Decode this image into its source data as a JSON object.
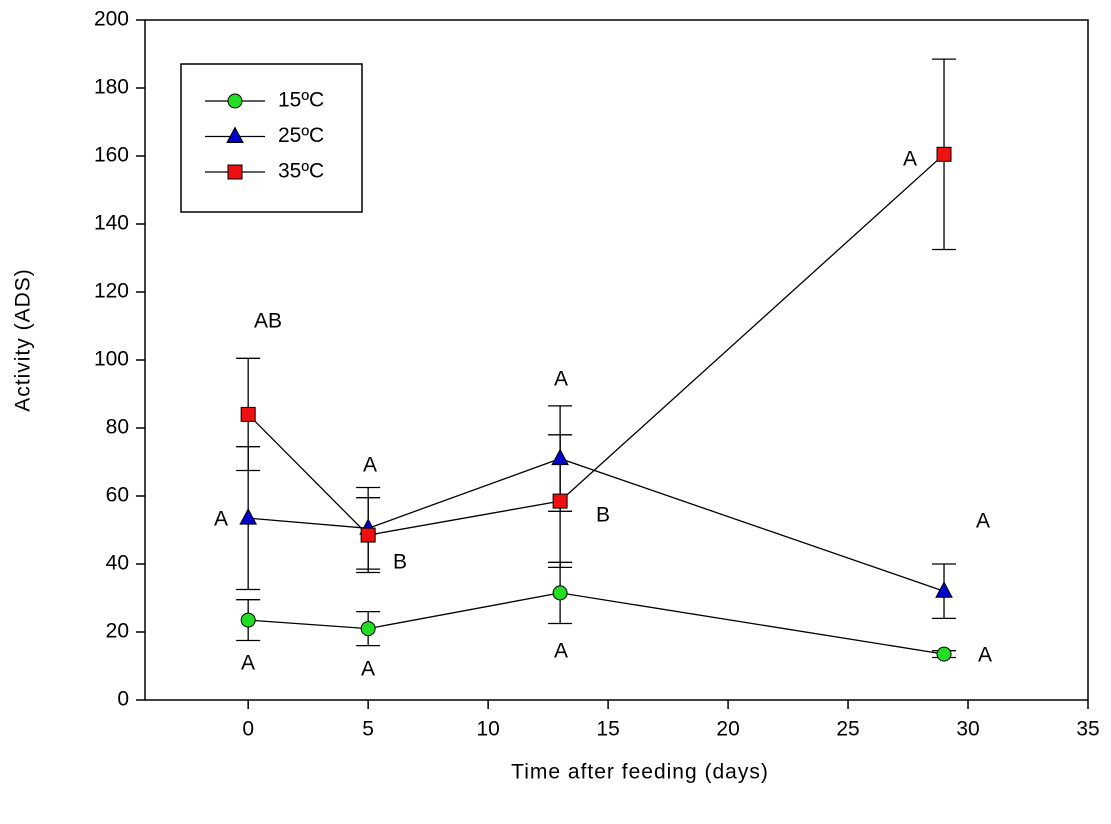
{
  "chart_data": {
    "type": "line",
    "x_label": "Time after feeding (days)",
    "y_label": "Activity (ADS)",
    "x": [
      0,
      5,
      13,
      29
    ],
    "series": [
      {
        "name": "15ºC",
        "color": "#22dd22",
        "marker": "circle",
        "values": [
          23.5,
          21,
          31.5,
          13.5
        ],
        "errors": [
          6,
          5,
          9,
          1
        ]
      },
      {
        "name": "25ºC",
        "color": "#0000cc",
        "marker": "triangle",
        "values": [
          53.5,
          50.5,
          71,
          32
        ],
        "errors": [
          21,
          12,
          15.5,
          8
        ]
      },
      {
        "name": "35ºC",
        "color": "#ee1111",
        "marker": "square",
        "values": [
          84,
          48.5,
          58.5,
          160.5
        ],
        "errors": [
          16.5,
          11,
          19.5,
          28
        ]
      }
    ],
    "annotations": [
      "AB",
      "A",
      "A",
      "A",
      "B",
      "A",
      "A",
      "B",
      "A",
      "A",
      "A",
      "A"
    ],
    "xlim": [
      -4.3,
      35
    ],
    "xticks": [
      0,
      5,
      10,
      15,
      20,
      25,
      30,
      35
    ],
    "ylim": [
      0,
      200
    ],
    "yticks": [
      0,
      20,
      40,
      60,
      80,
      100,
      120,
      140,
      160,
      180,
      200
    ],
    "legend": "upper-left"
  }
}
